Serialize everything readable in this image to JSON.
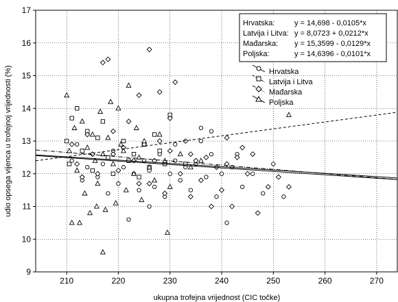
{
  "chart_data": {
    "type": "scatter",
    "xlabel": "ukupna trofejna vrijednost (CIC točke)",
    "ylabel": "udio opsega vijenca u trofejnoj vrijednosti (%)",
    "xlim": [
      204,
      274
    ],
    "ylim": [
      9,
      17
    ],
    "x_ticks": [
      210,
      220,
      230,
      240,
      250,
      260,
      270
    ],
    "y_ticks": [
      9,
      10,
      11,
      12,
      13,
      14,
      15,
      16,
      17
    ],
    "grid": true,
    "grid_style": "dotted",
    "equations_box": {
      "placement": "top-right",
      "rows": [
        {
          "name": "Hrvatska:",
          "eq": "y = 14,698 - 0,0105*x"
        },
        {
          "name": "Latvija i Litva:",
          "eq": "y = 8,0723 + 0,0212*x"
        },
        {
          "name": "Mađarska:",
          "eq": "y = 15,3599 - 0,0129*x"
        },
        {
          "name": "Poljska:",
          "eq": "y = 14,6396 - 0,0101*x"
        }
      ]
    },
    "legend": {
      "placement": "upper-right, below equations box",
      "entries": [
        {
          "name": "Hrvatska",
          "marker": "circle"
        },
        {
          "name": "Latvija i Litva",
          "marker": "square"
        },
        {
          "name": "Mađarska",
          "marker": "diamond"
        },
        {
          "name": "Poljska",
          "marker": "triangle"
        }
      ]
    },
    "series": [
      {
        "name": "Hrvatska",
        "marker": "circle",
        "line_style": "solid",
        "intercept": 14.698,
        "slope": -0.0105,
        "points": [
          [
            211,
            12.4
          ],
          [
            212,
            12.9
          ],
          [
            213,
            11.8
          ],
          [
            214,
            12.2
          ],
          [
            215,
            12.6
          ],
          [
            216,
            11.9
          ],
          [
            217,
            12.3
          ],
          [
            218,
            11.4
          ],
          [
            219,
            12.7
          ],
          [
            220,
            11.7
          ],
          [
            221,
            12.2
          ],
          [
            222,
            10.6
          ],
          [
            223,
            12.0
          ],
          [
            224,
            11.5
          ],
          [
            225,
            12.4
          ],
          [
            226,
            12.1
          ],
          [
            227,
            11.6
          ],
          [
            228,
            12.6
          ],
          [
            229,
            11.3
          ],
          [
            230,
            12.0
          ],
          [
            231,
            12.4
          ],
          [
            232,
            11.8
          ],
          [
            233,
            12.2
          ],
          [
            234,
            11.5
          ],
          [
            235,
            12.3
          ],
          [
            236,
            13.0
          ],
          [
            237,
            11.9
          ],
          [
            238,
            12.6
          ],
          [
            239,
            11.3
          ],
          [
            240,
            12.0
          ],
          [
            241,
            10.5
          ],
          [
            242,
            12.2
          ],
          [
            244,
            11.6
          ],
          [
            246,
            12.0
          ],
          [
            248,
            11.4
          ],
          [
            250,
            12.3
          ],
          [
            252,
            11.3
          ],
          [
            236,
            13.4
          ],
          [
            238,
            13.3
          ],
          [
            226,
            11.0
          ],
          [
            231,
            12.9
          ],
          [
            243,
            12.6
          ]
        ]
      },
      {
        "name": "Latvija i Litva",
        "marker": "square",
        "line_style": "dashed",
        "intercept": 8.0723,
        "slope": 0.0212,
        "points": [
          [
            210,
            13.0
          ],
          [
            210.5,
            12.3
          ],
          [
            211,
            13.7
          ],
          [
            212,
            14.0
          ],
          [
            213,
            12.7
          ],
          [
            214,
            13.3
          ],
          [
            215,
            12.1
          ],
          [
            216,
            13.1
          ],
          [
            217,
            13.6
          ],
          [
            218,
            12.5
          ],
          [
            219,
            12.0
          ],
          [
            221,
            13.0
          ],
          [
            223,
            12.6
          ],
          [
            224,
            11.9
          ],
          [
            225,
            12.9
          ],
          [
            227,
            13.2
          ],
          [
            229,
            12.3
          ],
          [
            230,
            13.8
          ],
          [
            233,
            12.3
          ],
          [
            228,
            12.7
          ],
          [
            226,
            12.2
          ],
          [
            222,
            12.4
          ]
        ]
      },
      {
        "name": "Mađarska",
        "marker": "diamond",
        "line_style": "dash-dot",
        "intercept": 15.3599,
        "slope": -0.0129,
        "points": [
          [
            211,
            12.9
          ],
          [
            212,
            12.3
          ],
          [
            213,
            11.9
          ],
          [
            214,
            13.2
          ],
          [
            215,
            12.6
          ],
          [
            216,
            12.0
          ],
          [
            217,
            15.4
          ],
          [
            218,
            15.5
          ],
          [
            219,
            13.3
          ],
          [
            220,
            12.1
          ],
          [
            221,
            12.8
          ],
          [
            222,
            13.6
          ],
          [
            223,
            12.4
          ],
          [
            224,
            11.7
          ],
          [
            225,
            12.9
          ],
          [
            226,
            15.8
          ],
          [
            227,
            12.4
          ],
          [
            228,
            13.0
          ],
          [
            229,
            11.4
          ],
          [
            230,
            12.7
          ],
          [
            231,
            14.8
          ],
          [
            232,
            12.0
          ],
          [
            233,
            13.0
          ],
          [
            234,
            11.3
          ],
          [
            235,
            12.4
          ],
          [
            236,
            11.8
          ],
          [
            237,
            12.5
          ],
          [
            238,
            11.0
          ],
          [
            239,
            12.2
          ],
          [
            240,
            11.5
          ],
          [
            241,
            12.3
          ],
          [
            242,
            11.0
          ],
          [
            243,
            12.5
          ],
          [
            244,
            12.8
          ],
          [
            245,
            12.0
          ],
          [
            246,
            12.6
          ],
          [
            247,
            10.8
          ],
          [
            249,
            11.6
          ],
          [
            251,
            11.9
          ],
          [
            253,
            11.6
          ],
          [
            224,
            14.4
          ],
          [
            228,
            14.5
          ],
          [
            230,
            13.7
          ],
          [
            219,
            12.6
          ],
          [
            226,
            11.7
          ],
          [
            234,
            12.6
          ],
          [
            241,
            13.1
          ]
        ]
      },
      {
        "name": "Poljska",
        "marker": "triangle",
        "line_style": "solid",
        "intercept": 14.6396,
        "slope": -0.0101,
        "points": [
          [
            210,
            14.4
          ],
          [
            210.5,
            12.7
          ],
          [
            211,
            10.5
          ],
          [
            211.5,
            13.4
          ],
          [
            212,
            12.1
          ],
          [
            212.5,
            10.5
          ],
          [
            213,
            13.6
          ],
          [
            213.5,
            11.4
          ],
          [
            214,
            12.8
          ],
          [
            214.5,
            10.8
          ],
          [
            215,
            13.2
          ],
          [
            215.5,
            12.4
          ],
          [
            216,
            11.7
          ],
          [
            216.5,
            13.9
          ],
          [
            217,
            12.6
          ],
          [
            217.5,
            10.9
          ],
          [
            218,
            13.1
          ],
          [
            219,
            12.3
          ],
          [
            219.5,
            11.1
          ],
          [
            220,
            14.0
          ],
          [
            221,
            12.7
          ],
          [
            221.5,
            11.5
          ],
          [
            222,
            14.7
          ],
          [
            223,
            12.0
          ],
          [
            223.5,
            13.4
          ],
          [
            224,
            12.5
          ],
          [
            224.5,
            11.2
          ],
          [
            225,
            13.0
          ],
          [
            226,
            12.2
          ],
          [
            227,
            11.8
          ],
          [
            228,
            13.2
          ],
          [
            229,
            12.4
          ],
          [
            230,
            11.6
          ],
          [
            229.5,
            10.2
          ],
          [
            232,
            12.6
          ],
          [
            234,
            12.2
          ],
          [
            217,
            9.6
          ],
          [
            236,
            12.4
          ],
          [
            253,
            13.8
          ],
          [
            220.5,
            12.9
          ],
          [
            218.5,
            14.2
          ],
          [
            215.8,
            11.0
          ]
        ]
      }
    ]
  }
}
